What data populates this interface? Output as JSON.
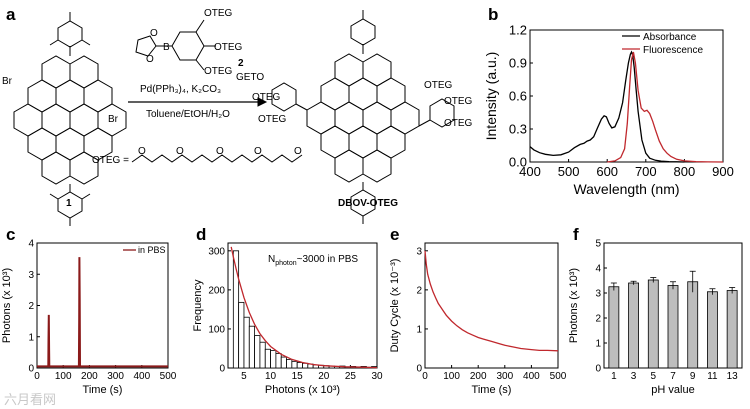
{
  "panel_letters": [
    "a",
    "b",
    "c",
    "d",
    "e",
    "f"
  ],
  "scheme": {
    "reagent_label": "2",
    "reagent_groups": [
      "OTEG",
      "OTEG",
      "OTEG"
    ],
    "conditions": [
      "Pd(PPh₃)₄, K₂CO₃",
      "Toluene/EtOH/H₂O"
    ],
    "start_label": "1",
    "product_label": "DBOV-OTEG",
    "bromo": [
      "Br",
      "Br"
    ],
    "product_groups": [
      "GETO",
      "OTEG",
      "OTEG",
      "OTEG",
      "OTEG",
      "OTEG"
    ],
    "teg_definition": "OTEG = ",
    "teg_o": [
      "O",
      "O",
      "O",
      "O",
      "O"
    ],
    "boron": "B",
    "boron_o": [
      "O",
      "O"
    ]
  },
  "chart_data": [
    {
      "panel": "b",
      "type": "line",
      "xlabel": "Wavelength (nm)",
      "ylabel": "Intensity (a.u.)",
      "xlim": [
        400,
        900
      ],
      "ylim": [
        0,
        1.2
      ],
      "xticks": [
        "400",
        "500",
        "600",
        "700",
        "800",
        "900"
      ],
      "yticks": [
        "0.0",
        "0.3",
        "0.6",
        "0.9",
        "1.2"
      ],
      "legend": "top-right",
      "series": [
        {
          "name": "Absorbance",
          "color": "#000000",
          "x": [
            400,
            410,
            425,
            440,
            460,
            480,
            500,
            515,
            530,
            540,
            548,
            556,
            565,
            575,
            585,
            592,
            598,
            605,
            612,
            620,
            630,
            640,
            648,
            655,
            660,
            663,
            666,
            670,
            675,
            680,
            690,
            700,
            710,
            725,
            740,
            760,
            780,
            800
          ],
          "y": [
            0.14,
            0.11,
            0.085,
            0.07,
            0.06,
            0.065,
            0.09,
            0.13,
            0.16,
            0.17,
            0.19,
            0.2,
            0.23,
            0.31,
            0.39,
            0.42,
            0.41,
            0.35,
            0.31,
            0.32,
            0.4,
            0.54,
            0.74,
            0.9,
            0.98,
            1.0,
            0.97,
            0.86,
            0.66,
            0.46,
            0.2,
            0.08,
            0.035,
            0.015,
            0.008,
            0.004,
            0.002,
            0.0
          ]
        },
        {
          "name": "Fluorescence",
          "color": "#c0282d",
          "x": [
            600,
            620,
            635,
            645,
            652,
            658,
            663,
            668,
            673,
            680,
            688,
            696,
            703,
            710,
            718,
            725,
            735,
            745,
            755,
            765,
            780,
            800,
            830,
            860,
            900
          ],
          "y": [
            0.0,
            0.01,
            0.04,
            0.12,
            0.35,
            0.68,
            0.93,
            1.0,
            0.9,
            0.65,
            0.49,
            0.46,
            0.47,
            0.44,
            0.37,
            0.29,
            0.19,
            0.12,
            0.08,
            0.05,
            0.025,
            0.01,
            0.004,
            0.001,
            0.0
          ]
        }
      ]
    },
    {
      "panel": "c",
      "type": "line",
      "xlabel": "Time (s)",
      "ylabel": "Photons (x 10³)",
      "xlim": [
        0,
        500
      ],
      "ylim": [
        0,
        4
      ],
      "xticks": [
        "0",
        "100",
        "200",
        "300",
        "400",
        "500"
      ],
      "yticks": [
        "0",
        "1",
        "2",
        "3",
        "4"
      ],
      "legend": "top-right",
      "series": [
        {
          "name": "in PBS",
          "color": "#8b1a1a",
          "x": [
            0,
            43,
            44,
            45,
            46,
            47,
            160,
            161,
            162,
            163,
            164,
            500
          ],
          "y": [
            0.05,
            0.05,
            0.9,
            1.7,
            0.6,
            0.05,
            0.05,
            1.6,
            3.55,
            2.2,
            0.05,
            0.05
          ]
        }
      ]
    },
    {
      "panel": "d",
      "type": "bar",
      "xlabel": "Photons (x 10³)",
      "ylabel": "Frequency",
      "annotation_main": "N",
      "annotation_sub": "photon",
      "annotation_rest": "~3000 in PBS",
      "xlim": [
        2,
        30
      ],
      "ylim": [
        0,
        320
      ],
      "xticks": [
        "5",
        "10",
        "15",
        "20",
        "25",
        "30"
      ],
      "yticks": [
        "0",
        "100",
        "200",
        "300"
      ],
      "bin_width": 1,
      "categories": [
        3.5,
        4.5,
        5.5,
        6.5,
        7.5,
        8.5,
        9.5,
        10.5,
        11.5,
        12.5,
        13.5,
        14.5,
        15.5,
        16.5,
        17.5,
        18.5,
        19.5,
        20.5,
        21.5,
        22.5,
        23.5,
        24.5,
        25.5,
        26.5,
        27.5,
        28.5,
        29.5
      ],
      "values": [
        300,
        168,
        130,
        107,
        83,
        66,
        48,
        45,
        37,
        28,
        22,
        17,
        14,
        12,
        10,
        8,
        7,
        6,
        5,
        4,
        5,
        3,
        4,
        3,
        4,
        2,
        4
      ],
      "fit": {
        "color": "#c0282d",
        "x": [
          2.6,
          3,
          3.5,
          4,
          5,
          6,
          7,
          8,
          9,
          10,
          12,
          14,
          16,
          18,
          20,
          24,
          30
        ],
        "y": [
          310,
          285,
          255,
          228,
          180,
          142,
          112,
          88,
          70,
          55,
          35,
          22,
          14,
          9,
          6,
          3,
          1
        ]
      }
    },
    {
      "panel": "e",
      "type": "line",
      "xlabel": "Time (s)",
      "ylabel": "Duty Cycle (x 10⁻³)",
      "xlim": [
        0,
        500
      ],
      "ylim": [
        0,
        3.2
      ],
      "xticks": [
        "0",
        "100",
        "200",
        "300",
        "400",
        "500"
      ],
      "yticks": [
        "0",
        "1",
        "2",
        "3"
      ],
      "series": [
        {
          "color": "#c0282d",
          "x": [
            0,
            5,
            10,
            20,
            30,
            40,
            50,
            60,
            70,
            80,
            100,
            120,
            140,
            160,
            180,
            200,
            220,
            250,
            280,
            300,
            330,
            360,
            400,
            430,
            460,
            500
          ],
          "y": [
            3.0,
            2.65,
            2.4,
            2.15,
            1.95,
            1.8,
            1.65,
            1.55,
            1.45,
            1.35,
            1.2,
            1.08,
            0.98,
            0.9,
            0.84,
            0.78,
            0.74,
            0.68,
            0.62,
            0.58,
            0.54,
            0.5,
            0.47,
            0.45,
            0.45,
            0.44
          ]
        }
      ]
    },
    {
      "panel": "f",
      "type": "bar",
      "xlabel": "pH value",
      "ylabel": "Photons (x 10³)",
      "xlim": [
        0,
        14
      ],
      "ylim": [
        0,
        5
      ],
      "xticks": [
        "1",
        "3",
        "5",
        "7",
        "9",
        "11",
        "13"
      ],
      "yticks": [
        "0",
        "1",
        "2",
        "3",
        "4",
        "5"
      ],
      "categories": [
        1,
        3,
        5,
        7,
        9,
        11,
        13
      ],
      "values": [
        3.25,
        3.4,
        3.52,
        3.3,
        3.45,
        3.05,
        3.1
      ],
      "errors": [
        0.15,
        0.07,
        0.1,
        0.15,
        0.42,
        0.12,
        0.12
      ],
      "bar_color": "#bdbdbd"
    }
  ],
  "watermark": "六月看网"
}
